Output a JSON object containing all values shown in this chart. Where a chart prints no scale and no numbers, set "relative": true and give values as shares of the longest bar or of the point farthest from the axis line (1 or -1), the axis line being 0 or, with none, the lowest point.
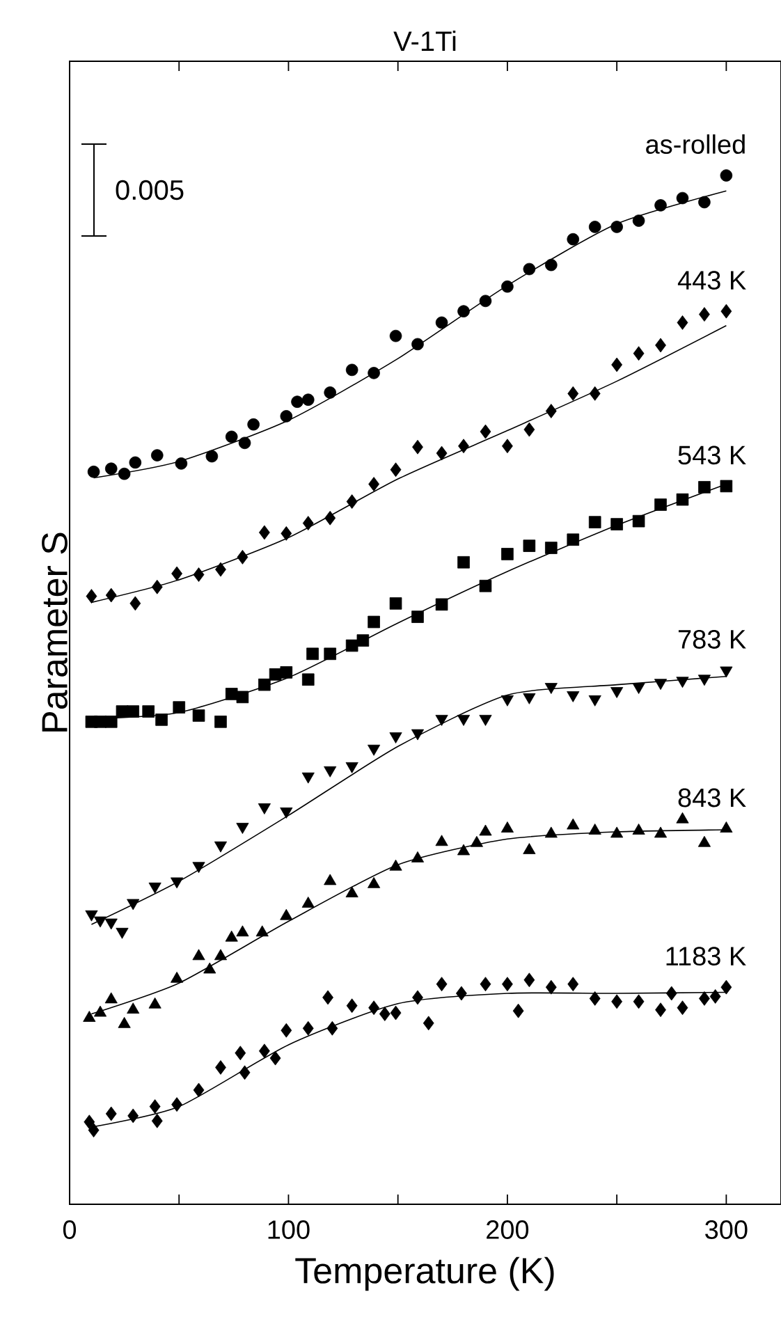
{
  "chart_data": {
    "type": "scatter",
    "title": "V-1Ti",
    "xlabel": "Temperature (K)",
    "ylabel": "Parameter   S",
    "relative": true,
    "xlim": [
      0,
      325
    ],
    "xticks": [
      0,
      {
        "value": 50,
        "label": null
      },
      100,
      {
        "value": 150,
        "label": null
      },
      200,
      {
        "value": 250,
        "label": null
      },
      300
    ],
    "tick_labels": "x",
    "legend": false,
    "grid": false,
    "annotations": [
      "0.005"
    ],
    "series": [
      {
        "name": "as-rolled",
        "marker": "circle",
        "color": "#000000",
        "x": [
          11,
          19,
          25,
          30,
          40,
          51,
          65,
          74,
          80,
          84,
          99,
          104,
          109,
          119,
          129,
          139,
          149,
          159,
          170,
          180,
          190,
          200,
          210,
          220,
          230,
          240,
          250,
          260,
          270,
          280,
          290,
          300
        ],
        "values": [
          0.712,
          0.715,
          0.71,
          0.721,
          0.728,
          0.72,
          0.727,
          0.746,
          0.74,
          0.758,
          0.766,
          0.78,
          0.782,
          0.789,
          0.811,
          0.808,
          0.844,
          0.836,
          0.857,
          0.868,
          0.878,
          0.892,
          0.909,
          0.913,
          0.938,
          0.95,
          0.95,
          0.956,
          0.971,
          0.978,
          0.974,
          1
        ]
      },
      {
        "type": "line",
        "color": "#000000",
        "x": [
          11,
          50,
          100,
          150,
          200,
          250,
          300
        ],
        "values": [
          0.706,
          0.722,
          0.762,
          0.822,
          0.893,
          0.953,
          0.985
        ]
      },
      {
        "name": "443 K",
        "marker": "diamond",
        "color": "#000000",
        "x": [
          10,
          19,
          30,
          40,
          49,
          59,
          69,
          79,
          89,
          99,
          109,
          119,
          129,
          139,
          149,
          159,
          170,
          180,
          190,
          200,
          210,
          220,
          230,
          240,
          250,
          260,
          270,
          280,
          290,
          300
        ],
        "values": [
          0.591,
          0.592,
          0.584,
          0.6,
          0.613,
          0.612,
          0.617,
          0.629,
          0.653,
          0.652,
          0.662,
          0.667,
          0.683,
          0.7,
          0.714,
          0.736,
          0.73,
          0.737,
          0.751,
          0.737,
          0.753,
          0.771,
          0.788,
          0.788,
          0.816,
          0.827,
          0.835,
          0.857,
          0.865,
          0.868
        ]
      },
      {
        "type": "line",
        "color": "#000000",
        "x": [
          10,
          50,
          100,
          150,
          200,
          250,
          300
        ],
        "values": [
          0.585,
          0.607,
          0.648,
          0.705,
          0.752,
          0.8,
          0.854
        ]
      },
      {
        "name": "543 K",
        "marker": "square",
        "color": "#000000",
        "x": [
          10,
          14,
          19,
          24,
          29,
          36,
          42,
          50,
          59,
          69,
          74,
          79,
          89,
          94,
          99,
          109,
          111,
          119,
          129,
          134,
          139,
          149,
          159,
          170,
          180,
          190,
          200,
          210,
          220,
          230,
          240,
          250,
          260,
          270,
          280,
          290,
          300
        ],
        "values": [
          0.469,
          0.469,
          0.469,
          0.479,
          0.479,
          0.479,
          0.471,
          0.483,
          0.475,
          0.469,
          0.496,
          0.493,
          0.505,
          0.515,
          0.517,
          0.51,
          0.535,
          0.535,
          0.543,
          0.548,
          0.566,
          0.584,
          0.571,
          0.583,
          0.624,
          0.601,
          0.632,
          0.64,
          0.638,
          0.646,
          0.663,
          0.661,
          0.664,
          0.68,
          0.685,
          0.697,
          0.698
        ]
      },
      {
        "type": "line",
        "color": "#000000",
        "x": [
          10,
          50,
          100,
          150,
          200,
          250,
          300
        ],
        "values": [
          0.472,
          0.478,
          0.512,
          0.565,
          0.615,
          0.66,
          0.7
        ]
      },
      {
        "name": "783 K",
        "marker": "triangle-down",
        "color": "#000000",
        "x": [
          10,
          14,
          19,
          24,
          29,
          39,
          49,
          59,
          69,
          79,
          89,
          99,
          109,
          119,
          129,
          139,
          149,
          159,
          170,
          180,
          190,
          200,
          210,
          220,
          230,
          240,
          250,
          260,
          270,
          280,
          290,
          300
        ],
        "values": [
          0.282,
          0.276,
          0.274,
          0.265,
          0.293,
          0.309,
          0.314,
          0.329,
          0.349,
          0.367,
          0.386,
          0.382,
          0.416,
          0.422,
          0.426,
          0.443,
          0.455,
          0.458,
          0.472,
          0.472,
          0.472,
          0.491,
          0.493,
          0.503,
          0.495,
          0.491,
          0.499,
          0.503,
          0.507,
          0.509,
          0.511,
          0.519
        ]
      },
      {
        "type": "line",
        "color": "#000000",
        "x": [
          10,
          50,
          100,
          150,
          200,
          250,
          300
        ],
        "values": [
          0.272,
          0.314,
          0.378,
          0.445,
          0.495,
          0.505,
          0.513
        ]
      },
      {
        "name": "843 K",
        "marker": "triangle",
        "color": "#000000",
        "x": [
          9,
          14,
          19,
          25,
          29,
          39,
          49,
          59,
          64,
          69,
          74,
          79,
          88,
          99,
          109,
          119,
          129,
          139,
          149,
          159,
          170,
          180,
          186,
          190,
          200,
          210,
          220,
          230,
          240,
          250,
          260,
          270,
          280,
          290,
          300
        ],
        "values": [
          0.181,
          0.186,
          0.199,
          0.175,
          0.189,
          0.194,
          0.219,
          0.241,
          0.228,
          0.241,
          0.259,
          0.264,
          0.264,
          0.28,
          0.292,
          0.314,
          0.302,
          0.311,
          0.328,
          0.336,
          0.352,
          0.343,
          0.351,
          0.362,
          0.365,
          0.344,
          0.36,
          0.368,
          0.363,
          0.36,
          0.363,
          0.36,
          0.374,
          0.351,
          0.365
        ]
      },
      {
        "type": "line",
        "color": "#000000",
        "x": [
          10,
          50,
          100,
          150,
          200,
          250,
          300
        ],
        "values": [
          0.185,
          0.215,
          0.275,
          0.33,
          0.355,
          0.362,
          0.364
        ]
      },
      {
        "name": "1183 K",
        "marker": "diamond",
        "color": "#000000",
        "x": [
          9,
          11,
          19,
          29,
          39,
          40,
          49,
          59,
          69,
          78,
          80,
          89,
          94,
          99,
          109,
          118,
          120,
          129,
          139,
          144,
          149,
          159,
          164,
          170,
          179,
          190,
          200,
          205,
          210,
          220,
          230,
          240,
          250,
          260,
          270,
          275,
          280,
          290,
          295,
          300
        ],
        "values": [
          0.08,
          0.072,
          0.088,
          0.086,
          0.095,
          0.081,
          0.097,
          0.111,
          0.133,
          0.147,
          0.128,
          0.149,
          0.142,
          0.169,
          0.171,
          0.201,
          0.171,
          0.193,
          0.191,
          0.185,
          0.186,
          0.201,
          0.176,
          0.214,
          0.205,
          0.214,
          0.214,
          0.188,
          0.218,
          0.211,
          0.214,
          0.2,
          0.197,
          0.197,
          0.189,
          0.205,
          0.191,
          0.2,
          0.202,
          0.211
        ]
      },
      {
        "type": "line",
        "color": "#000000",
        "x": [
          10,
          50,
          100,
          150,
          200,
          250,
          300
        ],
        "values": [
          0.075,
          0.095,
          0.155,
          0.195,
          0.205,
          0.205,
          0.206
        ]
      }
    ]
  }
}
